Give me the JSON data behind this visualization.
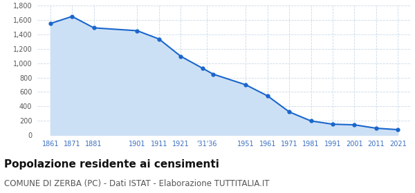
{
  "years": [
    1861,
    1871,
    1881,
    1901,
    1911,
    1921,
    1931,
    1936,
    1951,
    1961,
    1971,
    1981,
    1991,
    2001,
    2011,
    2021
  ],
  "population": [
    1553,
    1652,
    1493,
    1453,
    1338,
    1098,
    932,
    848,
    700,
    546,
    323,
    197,
    152,
    143,
    96,
    76
  ],
  "line_color": "#1a66cc",
  "fill_color": "#cce0f5",
  "marker_color": "#1a66cc",
  "background_color": "#ffffff",
  "grid_color": "#c8d8e8",
  "title": "Popolazione residente ai censimenti",
  "subtitle": "COMUNE DI ZERBA (PC) - Dati ISTAT - Elaborazione TUTTITALIA.IT",
  "ylim": [
    0,
    1800
  ],
  "yticks": [
    0,
    200,
    400,
    600,
    800,
    1000,
    1200,
    1400,
    1600,
    1800
  ],
  "xtick_years": [
    1861,
    1871,
    1881,
    1901,
    1911,
    1921,
    1933,
    1951,
    1961,
    1971,
    1981,
    1991,
    2001,
    2011,
    2021
  ],
  "xtick_labels": [
    "1861",
    "1871",
    "1881",
    "1901",
    "1911",
    "1921",
    "'31'36",
    "1951",
    "1961",
    "1971",
    "1981",
    "1991",
    "2001",
    "2011",
    "2021"
  ],
  "xmin": 1855,
  "xmax": 2027,
  "title_fontsize": 11,
  "subtitle_fontsize": 8.5
}
